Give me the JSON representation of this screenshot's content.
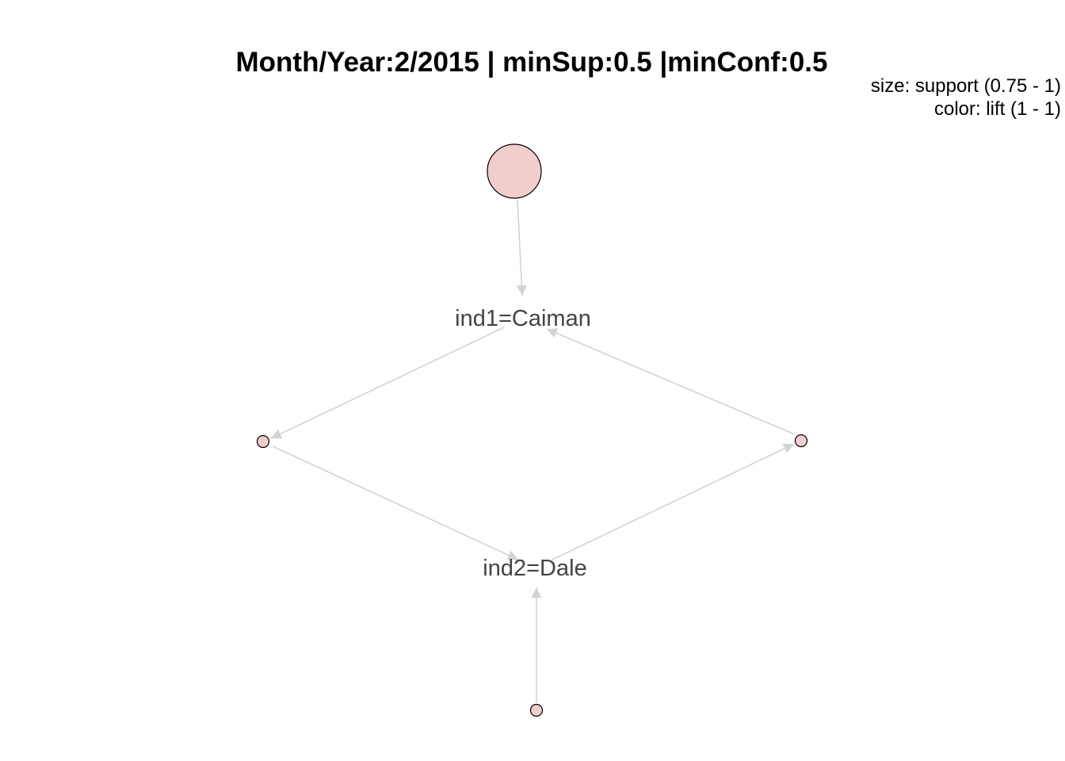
{
  "plot": {
    "title": "Month/Year:2/2015 | minSup:0.5 |minConf:0.5",
    "legend_size": "size: support (0.75 - 1)",
    "legend_color": "color: lift (1 - 1)"
  },
  "colors": {
    "node_fill": "#f2cdcd",
    "node_stroke": "#000000",
    "edge": "#d3d3d3",
    "label": "#444444"
  },
  "items": [
    {
      "id": "caiman",
      "label": "ind1=Caiman"
    },
    {
      "id": "dale",
      "label": "ind2=Dale"
    }
  ],
  "rules": [
    {
      "id": "r-top",
      "lhs": [],
      "rhs": "caiman",
      "support_level": "max"
    },
    {
      "id": "r-left",
      "lhs": [
        "caiman"
      ],
      "rhs": "dale",
      "support_level": "min"
    },
    {
      "id": "r-right",
      "lhs": [
        "dale"
      ],
      "rhs": "caiman",
      "support_level": "min"
    },
    {
      "id": "r-bottom",
      "lhs": [],
      "rhs": "dale",
      "support_level": "min"
    }
  ]
}
